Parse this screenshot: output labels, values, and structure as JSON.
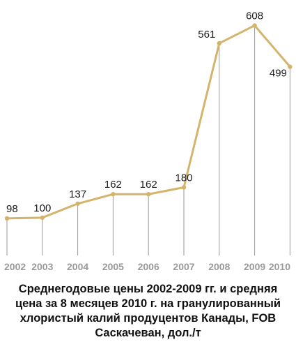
{
  "chart_data": {
    "type": "line",
    "categories": [
      "2002",
      "2003",
      "2004",
      "2005",
      "2006",
      "2007",
      "2008",
      "2009",
      "2010"
    ],
    "values": [
      98,
      100,
      137,
      162,
      162,
      180,
      561,
      608,
      499
    ],
    "value_labels": [
      "98",
      "100",
      "137",
      "162",
      "162",
      "180",
      "561",
      "608",
      "499"
    ],
    "ylim": [
      0,
      620
    ],
    "grid": false,
    "line_color": "#d4b46a",
    "drop_line_color": "#9a9a9a",
    "tick_label_color": "#9a9a9a"
  },
  "caption": {
    "lines": [
      "Среднегодовые цены 2002-2009 гг. и средняя",
      "цена за 8 месяцев 2010 г. на гранулированный",
      "хлористый калий продуцентов Канады, FOB",
      "Саскачеван, дол./т"
    ]
  }
}
